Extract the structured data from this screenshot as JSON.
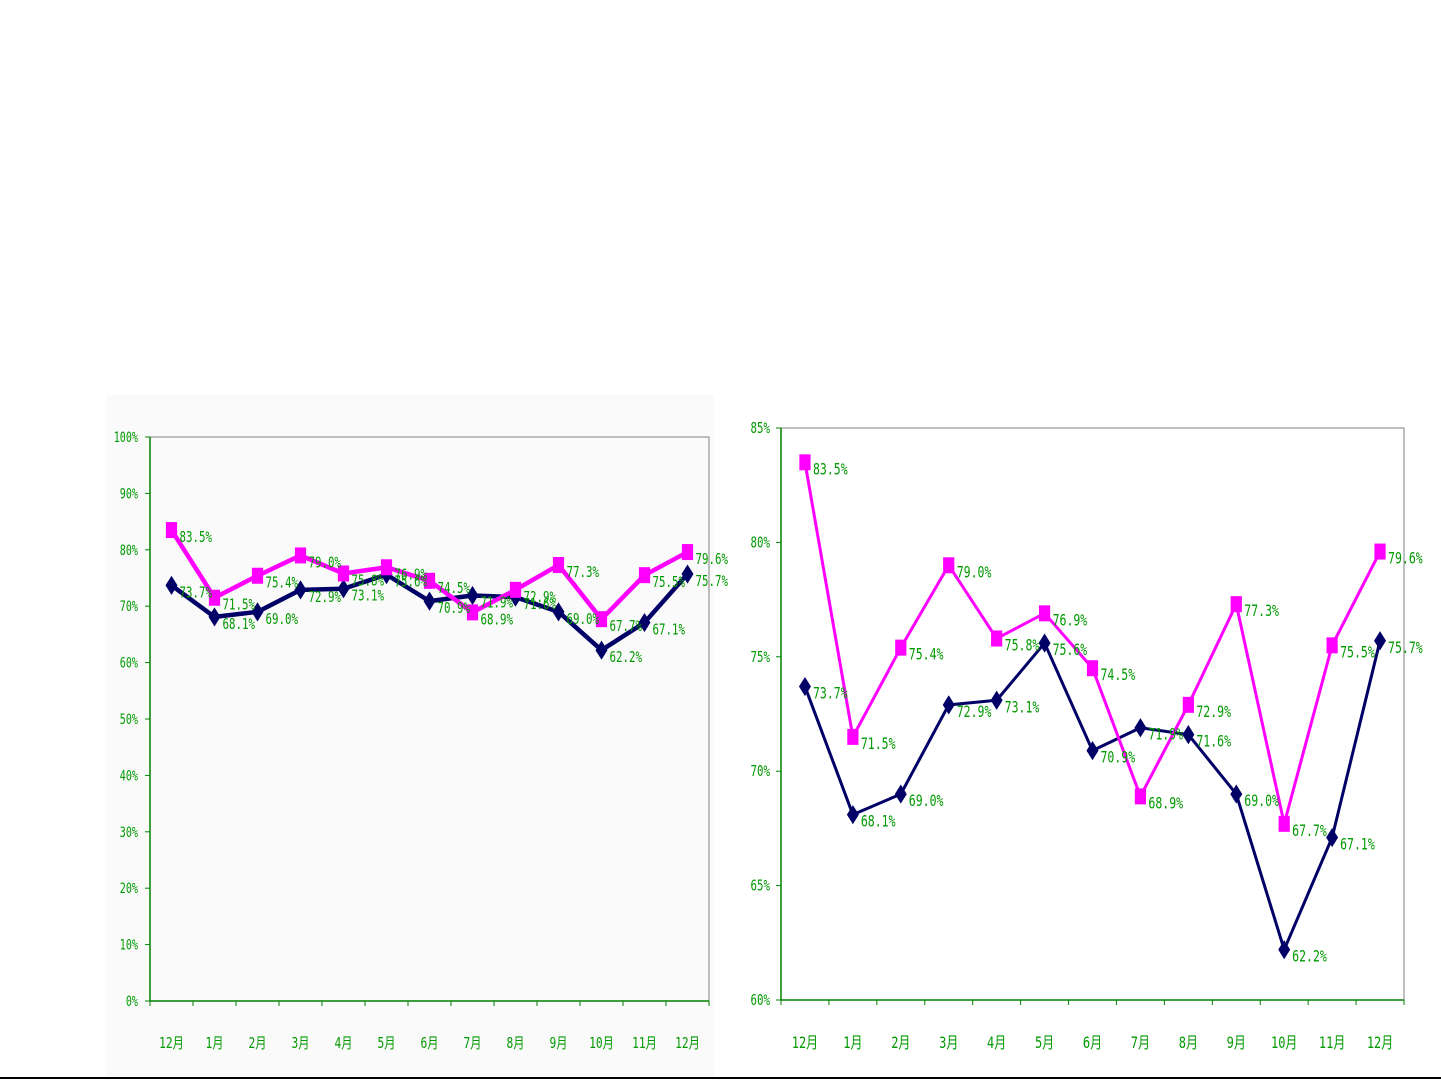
{
  "colors": {
    "series_a": "#ff00ff",
    "series_b": "#000066",
    "label_text": "#009900",
    "axis": "#008000",
    "frame": "#808080",
    "panel_bg": "#fafafa"
  },
  "chart_data": [
    {
      "type": "line",
      "title": "",
      "xlabel": "",
      "ylabel": "",
      "categories": [
        "12月",
        "1月",
        "2月",
        "3月",
        "4月",
        "5月",
        "6月",
        "7月",
        "8月",
        "9月",
        "10月",
        "11月",
        "12月"
      ],
      "yticks": [
        "0%",
        "10%",
        "20%",
        "30%",
        "40%",
        "50%",
        "60%",
        "70%",
        "80%",
        "90%",
        "100%"
      ],
      "ylim": [
        0,
        100
      ],
      "series": [
        {
          "name": "series_a",
          "marker": "square",
          "values": [
            83.5,
            71.5,
            75.4,
            79.0,
            75.8,
            76.9,
            74.5,
            68.9,
            72.9,
            77.3,
            67.7,
            75.5,
            79.6
          ],
          "labels": [
            "83.5%",
            "71.5%",
            "75.4%",
            "79.0%",
            "75.8%",
            "76.9%",
            "74.5%",
            "68.9%",
            "72.9%",
            "77.3%",
            "67.7%",
            "75.5%",
            "79.6%"
          ]
        },
        {
          "name": "series_b",
          "marker": "diamond",
          "values": [
            73.7,
            68.1,
            69.0,
            72.9,
            73.1,
            75.6,
            70.9,
            71.9,
            71.6,
            69.0,
            62.2,
            67.1,
            75.7
          ],
          "labels": [
            "73.7%",
            "68.1%",
            "69.0%",
            "72.9%",
            "73.1%",
            "75.6%",
            "70.9%",
            "71.9%",
            "71.6%",
            "69.0%",
            "62.2%",
            "67.1%",
            "75.7%"
          ]
        }
      ]
    },
    {
      "type": "line",
      "title": "",
      "xlabel": "",
      "ylabel": "",
      "categories": [
        "12月",
        "1月",
        "2月",
        "3月",
        "4月",
        "5月",
        "6月",
        "7月",
        "8月",
        "9月",
        "10月",
        "11月",
        "12月"
      ],
      "yticks": [
        "60%",
        "65%",
        "70%",
        "75%",
        "80%",
        "85%"
      ],
      "ylim": [
        60,
        85
      ],
      "series": [
        {
          "name": "series_a",
          "marker": "square",
          "values": [
            83.5,
            71.5,
            75.4,
            79.0,
            75.8,
            76.9,
            74.5,
            68.9,
            72.9,
            77.3,
            67.7,
            75.5,
            79.6
          ],
          "labels": [
            "83.5%",
            "71.5%",
            "75.4%",
            "79.0%",
            "75.8%",
            "76.9%",
            "74.5%",
            "68.9%",
            "72.9%",
            "77.3%",
            "67.7%",
            "75.5%",
            "79.6%"
          ]
        },
        {
          "name": "series_b",
          "marker": "diamond",
          "values": [
            73.7,
            68.1,
            69.0,
            72.9,
            73.1,
            75.6,
            70.9,
            71.9,
            71.6,
            69.0,
            62.2,
            67.1,
            75.7
          ],
          "labels": [
            "73.7%",
            "68.1%",
            "69.0%",
            "72.9%",
            "73.1%",
            "75.6%",
            "70.9%",
            "71.9%",
            "71.6%",
            "69.0%",
            "62.2%",
            "67.1%",
            "75.7%"
          ]
        }
      ]
    }
  ]
}
